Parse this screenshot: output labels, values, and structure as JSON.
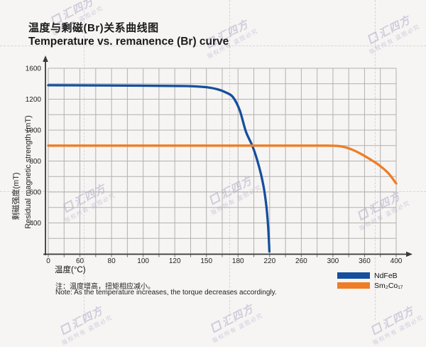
{
  "title": {
    "zh": "温度与剩磁(Br)关系曲线图",
    "en": "Temperature vs. remanence (Br) curve"
  },
  "note": {
    "zh": "注：温度增高，扭矩相应减小。",
    "en": "Note: As the temperature increases, the torque decreases accordingly."
  },
  "watermark": {
    "brand": "汇四方",
    "line2": "版权所有 盗图必究"
  },
  "chart_data": {
    "type": "line",
    "title": "温度与剩磁(Br)关系曲线图 / Temperature vs. remanence (Br) curve",
    "xlabel": "温度(°C)",
    "ylabel_zh": "剩磁强度(mT)",
    "ylabel_en": "Residual magnetic strength (mT)",
    "x_ticks": [
      0,
      60,
      80,
      100,
      120,
      150,
      180,
      220,
      260,
      300,
      360,
      400
    ],
    "y_ticks": [
      1600,
      1200,
      1000,
      800,
      600,
      400,
      0
    ],
    "xlim": [
      0,
      400
    ],
    "ylim": [
      0,
      1600
    ],
    "grid": true,
    "legend_position": "bottom-right",
    "series": [
      {
        "name": "NdFeB",
        "color": "#164f9e",
        "points": [
          [
            0,
            1380
          ],
          [
            50,
            1379
          ],
          [
            100,
            1375
          ],
          [
            130,
            1370
          ],
          [
            150,
            1355
          ],
          [
            160,
            1330
          ],
          [
            168,
            1290
          ],
          [
            175,
            1230
          ],
          [
            182,
            1130
          ],
          [
            190,
            990
          ],
          [
            198,
            900
          ],
          [
            204,
            810
          ],
          [
            209,
            715
          ],
          [
            213,
            615
          ],
          [
            216,
            500
          ],
          [
            218,
            360
          ],
          [
            219.3,
            120
          ],
          [
            219.6,
            30
          ]
        ]
      },
      {
        "name": "Sm₂Co₁₇",
        "color": "#ee7d26",
        "points": [
          [
            0,
            900
          ],
          [
            60,
            900
          ],
          [
            120,
            900
          ],
          [
            180,
            900
          ],
          [
            240,
            900
          ],
          [
            290,
            900
          ],
          [
            308,
            898
          ],
          [
            320,
            892
          ],
          [
            335,
            876
          ],
          [
            350,
            852
          ],
          [
            365,
            818
          ],
          [
            378,
            775
          ],
          [
            390,
            722
          ],
          [
            400,
            655
          ]
        ]
      }
    ]
  }
}
